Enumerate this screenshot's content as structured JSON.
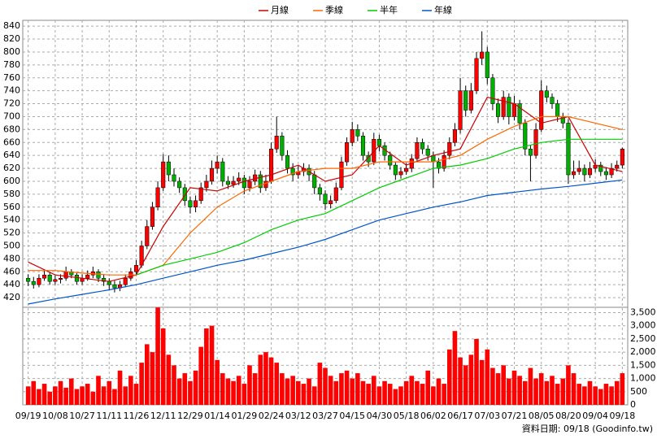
{
  "chart_data": {
    "type": "candlestick",
    "up_color": "#ff0000",
    "down_color": "#00b000",
    "volume_color": "#ff0000",
    "xlim": [
      -1,
      111
    ],
    "xticks": [
      {
        "value": 0,
        "label": "09/19"
      },
      {
        "value": 5,
        "label": "10/08"
      },
      {
        "value": 10,
        "label": "10/27"
      },
      {
        "value": 15,
        "label": "11/11"
      },
      {
        "value": 20,
        "label": "11/26"
      },
      {
        "value": 25,
        "label": "12/11"
      },
      {
        "value": 30,
        "label": "12/29"
      },
      {
        "value": 35,
        "label": "01/14"
      },
      {
        "value": 40,
        "label": "01/29"
      },
      {
        "value": 45,
        "label": "02/24"
      },
      {
        "value": 50,
        "label": "03/12"
      },
      {
        "value": 55,
        "label": "03/27"
      },
      {
        "value": 60,
        "label": "04/15"
      },
      {
        "value": 65,
        "label": "04/30"
      },
      {
        "value": 70,
        "label": "05/18"
      },
      {
        "value": 75,
        "label": "06/02"
      },
      {
        "value": 80,
        "label": "06/17"
      },
      {
        "value": 85,
        "label": "07/03"
      },
      {
        "value": 90,
        "label": "07/21"
      },
      {
        "value": 95,
        "label": "08/05"
      },
      {
        "value": 100,
        "label": "08/20"
      },
      {
        "value": 105,
        "label": "09/04"
      },
      {
        "value": 110,
        "label": "09/18"
      }
    ],
    "ylim": [
      405,
      849
    ],
    "yticks": [
      420,
      440,
      460,
      480,
      500,
      520,
      540,
      560,
      580,
      600,
      620,
      640,
      660,
      680,
      700,
      720,
      740,
      760,
      780,
      800,
      820,
      840
    ],
    "vol_ylim": [
      0,
      3700
    ],
    "vol_ticks": [
      0,
      500,
      {
        "value": 1000,
        "label": "1,000"
      },
      {
        "value": 1500,
        "label": "1,500"
      },
      {
        "value": 2000,
        "label": "2,000"
      },
      {
        "value": 2500,
        "label": "2,500"
      },
      {
        "value": 3000,
        "label": "3,000"
      },
      {
        "value": 3500,
        "label": "3,500"
      }
    ],
    "grid": true,
    "footer": "資料日期: 09/18 (Goodinfo.tw)",
    "ohlc": [
      [
        450,
        456,
        438,
        445
      ],
      [
        445,
        452,
        434,
        440
      ],
      [
        440,
        456,
        436,
        450
      ],
      [
        450,
        462,
        446,
        455
      ],
      [
        455,
        460,
        440,
        445
      ],
      [
        445,
        454,
        440,
        448
      ],
      [
        448,
        456,
        442,
        450
      ],
      [
        450,
        468,
        446,
        460
      ],
      [
        460,
        464,
        450,
        455
      ],
      [
        455,
        458,
        440,
        445
      ],
      [
        445,
        456,
        440,
        450
      ],
      [
        450,
        462,
        446,
        455
      ],
      [
        455,
        468,
        450,
        460
      ],
      [
        460,
        464,
        444,
        450
      ],
      [
        450,
        456,
        438,
        445
      ],
      [
        445,
        450,
        432,
        440
      ],
      [
        440,
        446,
        428,
        435
      ],
      [
        435,
        446,
        430,
        440
      ],
      [
        440,
        456,
        436,
        450
      ],
      [
        450,
        466,
        446,
        460
      ],
      [
        460,
        478,
        455,
        470
      ],
      [
        470,
        508,
        466,
        500
      ],
      [
        500,
        540,
        495,
        530
      ],
      [
        530,
        568,
        525,
        560
      ],
      [
        560,
        600,
        555,
        590
      ],
      [
        590,
        642,
        585,
        630
      ],
      [
        630,
        640,
        600,
        610
      ],
      [
        610,
        620,
        592,
        600
      ],
      [
        600,
        606,
        582,
        590
      ],
      [
        590,
        596,
        562,
        570
      ],
      [
        570,
        576,
        550,
        560
      ],
      [
        560,
        578,
        552,
        570
      ],
      [
        570,
        598,
        565,
        590
      ],
      [
        590,
        610,
        584,
        600
      ],
      [
        600,
        632,
        595,
        620
      ],
      [
        620,
        640,
        612,
        630
      ],
      [
        630,
        636,
        592,
        600
      ],
      [
        600,
        608,
        588,
        595
      ],
      [
        595,
        608,
        590,
        600
      ],
      [
        600,
        614,
        594,
        605
      ],
      [
        605,
        610,
        580,
        590
      ],
      [
        590,
        608,
        584,
        600
      ],
      [
        600,
        618,
        594,
        610
      ],
      [
        610,
        616,
        582,
        590
      ],
      [
        590,
        610,
        585,
        600
      ],
      [
        600,
        660,
        596,
        650
      ],
      [
        650,
        700,
        644,
        670
      ],
      [
        670,
        676,
        632,
        640
      ],
      [
        640,
        648,
        612,
        620
      ],
      [
        620,
        628,
        600,
        610
      ],
      [
        610,
        624,
        604,
        615
      ],
      [
        615,
        628,
        608,
        620
      ],
      [
        620,
        626,
        600,
        610
      ],
      [
        610,
        616,
        580,
        590
      ],
      [
        590,
        596,
        570,
        580
      ],
      [
        580,
        586,
        556,
        565
      ],
      [
        565,
        578,
        558,
        570
      ],
      [
        570,
        598,
        566,
        590
      ],
      [
        590,
        638,
        586,
        630
      ],
      [
        630,
        668,
        624,
        660
      ],
      [
        660,
        692,
        654,
        680
      ],
      [
        680,
        688,
        662,
        670
      ],
      [
        670,
        676,
        632,
        640
      ],
      [
        640,
        646,
        622,
        630
      ],
      [
        630,
        675,
        625,
        665
      ],
      [
        665,
        672,
        646,
        655
      ],
      [
        655,
        660,
        632,
        640
      ],
      [
        640,
        646,
        618,
        625
      ],
      [
        625,
        630,
        602,
        610
      ],
      [
        610,
        622,
        604,
        615
      ],
      [
        615,
        628,
        610,
        620
      ],
      [
        620,
        642,
        614,
        635
      ],
      [
        635,
        668,
        630,
        660
      ],
      [
        660,
        666,
        642,
        650
      ],
      [
        650,
        656,
        632,
        640
      ],
      [
        640,
        646,
        590,
        630
      ],
      [
        630,
        636,
        612,
        620
      ],
      [
        620,
        648,
        615,
        640
      ],
      [
        640,
        668,
        634,
        660
      ],
      [
        660,
        690,
        654,
        680
      ],
      [
        680,
        760,
        674,
        740
      ],
      [
        740,
        748,
        700,
        710
      ],
      [
        710,
        752,
        705,
        740
      ],
      [
        740,
        800,
        735,
        790
      ],
      [
        790,
        832,
        780,
        800
      ],
      [
        800,
        808,
        750,
        760
      ],
      [
        760,
        766,
        710,
        720
      ],
      [
        720,
        728,
        690,
        700
      ],
      [
        700,
        740,
        695,
        730
      ],
      [
        730,
        736,
        688,
        700
      ],
      [
        700,
        732,
        694,
        720
      ],
      [
        720,
        726,
        680,
        690
      ],
      [
        690,
        696,
        640,
        650
      ],
      [
        650,
        656,
        600,
        640
      ],
      [
        640,
        690,
        635,
        680
      ],
      [
        680,
        756,
        676,
        740
      ],
      [
        740,
        748,
        722,
        730
      ],
      [
        730,
        736,
        712,
        720
      ],
      [
        720,
        726,
        692,
        700
      ],
      [
        700,
        706,
        682,
        690
      ],
      [
        690,
        696,
        596,
        610
      ],
      [
        610,
        632,
        604,
        615
      ],
      [
        615,
        632,
        610,
        620
      ],
      [
        620,
        626,
        600,
        610
      ],
      [
        610,
        630,
        605,
        620
      ],
      [
        620,
        634,
        614,
        625
      ],
      [
        625,
        630,
        608,
        615
      ],
      [
        615,
        622,
        602,
        610
      ],
      [
        610,
        628,
        605,
        620
      ],
      [
        620,
        632,
        615,
        625
      ],
      [
        625,
        652,
        620,
        650
      ]
    ],
    "volume": [
      700,
      900,
      600,
      800,
      500,
      700,
      900,
      650,
      1000,
      600,
      700,
      800,
      500,
      1100,
      700,
      900,
      600,
      1300,
      700,
      1100,
      800,
      1600,
      2300,
      2000,
      3690,
      2900,
      1900,
      1500,
      1000,
      1200,
      900,
      1300,
      2200,
      2900,
      3000,
      1700,
      1200,
      1000,
      900,
      1100,
      800,
      1500,
      1200,
      1900,
      2000,
      1800,
      1600,
      1200,
      1000,
      1100,
      900,
      800,
      1000,
      700,
      1600,
      1400,
      1100,
      900,
      1200,
      1300,
      1000,
      1200,
      900,
      800,
      1100,
      700,
      900,
      800,
      600,
      700,
      900,
      1100,
      900,
      800,
      1300,
      700,
      1000,
      800,
      2100,
      2800,
      1800,
      1500,
      1900,
      2500,
      1700,
      2100,
      1400,
      1200,
      1500,
      1000,
      1300,
      1100,
      900,
      1400,
      1000,
      1200,
      900,
      1100,
      800,
      1000,
      1500,
      1200,
      800,
      700,
      900,
      700,
      600,
      800,
      700,
      900,
      1200
    ],
    "ma_x": [
      0,
      5,
      10,
      15,
      20,
      25,
      30,
      35,
      40,
      45,
      50,
      55,
      60,
      65,
      70,
      75,
      80,
      85,
      90,
      95,
      100,
      105,
      110
    ],
    "series": [
      {
        "name": "月線",
        "color": "#cc0000",
        "values": [
          475,
          455,
          450,
          445,
          455,
          530,
          590,
          585,
          600,
          610,
          625,
          600,
          610,
          655,
          625,
          640,
          650,
          730,
          720,
          690,
          700,
          625,
          615
        ]
      },
      {
        "name": "季線",
        "color": "#ff6600",
        "values": [
          462,
          462,
          458,
          455,
          455,
          470,
          520,
          560,
          585,
          600,
          615,
          620,
          620,
          630,
          630,
          630,
          640,
          665,
          685,
          700,
          700,
          690,
          680
        ]
      },
      {
        "name": "半年",
        "color": "#00cc00",
        "values": [
          null,
          null,
          null,
          null,
          455,
          470,
          480,
          490,
          505,
          525,
          540,
          550,
          570,
          590,
          605,
          620,
          625,
          635,
          650,
          660,
          665,
          665,
          665
        ]
      },
      {
        "name": "年線",
        "color": "#0055cc",
        "values": [
          410,
          418,
          425,
          432,
          440,
          450,
          460,
          470,
          478,
          488,
          498,
          510,
          525,
          540,
          550,
          560,
          568,
          578,
          583,
          588,
          592,
          597,
          602
        ]
      }
    ]
  }
}
